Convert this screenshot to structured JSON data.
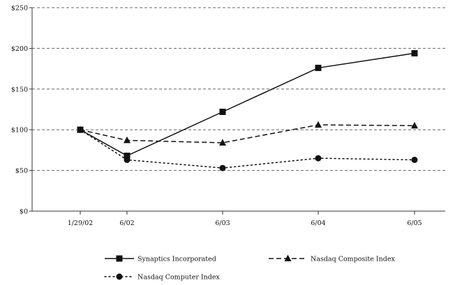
{
  "chart_data": {
    "type": "line",
    "categories": [
      "1/29/02",
      "6/02",
      "6/03",
      "6/04",
      "6/05"
    ],
    "x_positions": [
      0,
      1,
      3,
      5,
      7
    ],
    "ylim": [
      0,
      250
    ],
    "yticks": [
      0,
      50,
      100,
      150,
      200,
      250
    ],
    "ytick_labels": [
      "$0",
      "$50",
      "$100",
      "$150",
      "$200",
      "$250"
    ],
    "grid": true,
    "legend_placement": "bottom",
    "series": [
      {
        "name": "Synaptics Incorporated",
        "values": [
          100,
          68,
          122,
          176,
          194
        ],
        "marker": "square",
        "dash": "solid",
        "color": "#111111"
      },
      {
        "name": "Nasdaq Composite Index",
        "values": [
          100,
          87,
          84,
          106,
          105
        ],
        "marker": "triangle",
        "dash": "dashed",
        "color": "#111111"
      },
      {
        "name": "Nasdaq Computer Index",
        "values": [
          100,
          63,
          53,
          65,
          63
        ],
        "marker": "circle",
        "dash": "dotted",
        "color": "#111111"
      }
    ]
  }
}
